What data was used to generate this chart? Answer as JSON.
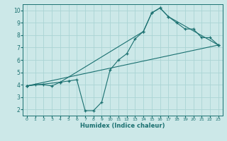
{
  "xlabel": "Humidex (Indice chaleur)",
  "ylabel": "",
  "bg_color": "#cce8e8",
  "line_color": "#1a7070",
  "xlim": [
    -0.5,
    23.5
  ],
  "ylim": [
    1.5,
    10.5
  ],
  "xticks": [
    0,
    1,
    2,
    3,
    4,
    5,
    6,
    7,
    8,
    9,
    10,
    11,
    12,
    13,
    14,
    15,
    16,
    17,
    18,
    19,
    20,
    21,
    22,
    23
  ],
  "yticks": [
    2,
    3,
    4,
    5,
    6,
    7,
    8,
    9,
    10
  ],
  "line1": {
    "x": [
      0,
      1,
      2,
      3,
      4,
      5,
      6,
      7,
      8,
      9,
      10,
      11,
      12,
      13,
      14,
      15,
      16,
      17,
      18,
      19,
      20,
      21,
      22,
      23
    ],
    "y": [
      3.9,
      4.0,
      4.0,
      3.9,
      4.2,
      4.3,
      4.4,
      1.9,
      1.9,
      2.6,
      5.2,
      6.0,
      6.5,
      7.7,
      8.3,
      9.8,
      10.2,
      9.5,
      9.0,
      8.5,
      8.5,
      7.8,
      7.8,
      7.2
    ]
  },
  "line2": {
    "x": [
      0,
      4,
      14,
      15,
      16,
      17,
      23
    ],
    "y": [
      3.9,
      4.2,
      8.3,
      9.8,
      10.2,
      9.5,
      7.2
    ]
  },
  "line3": {
    "x": [
      0,
      23
    ],
    "y": [
      3.9,
      7.2
    ]
  },
  "grid_color": "#aad4d4",
  "marker": "+"
}
